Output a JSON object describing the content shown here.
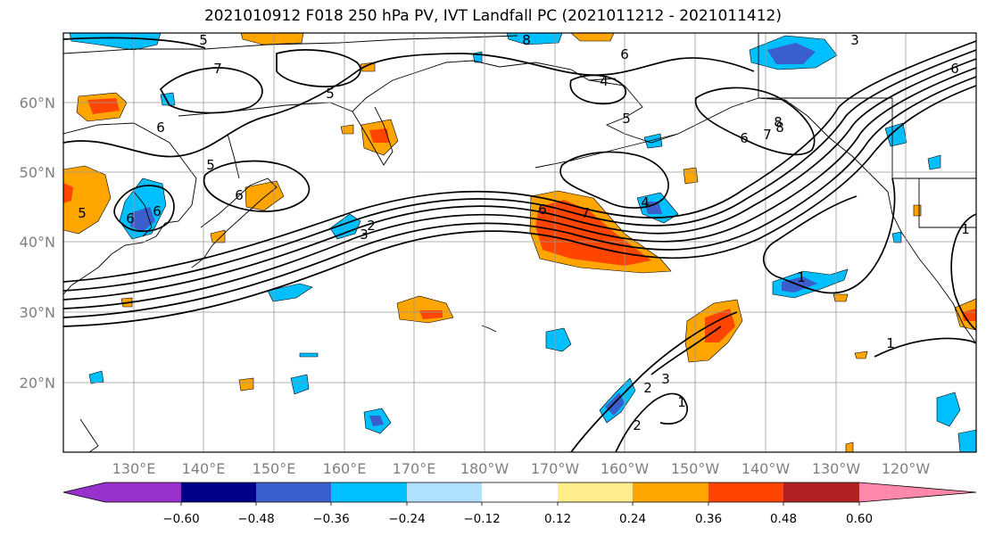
{
  "title": "2021010912 F018 250 hPa PV, IVT Landfall PC (2021011212 - 2021011412)",
  "lat_labels": [
    "60°N",
    "50°N",
    "40°N",
    "30°N",
    "20°N"
  ],
  "lon_labels": [
    "130°E",
    "140°E",
    "150°E",
    "160°E",
    "170°E",
    "180°W",
    "170°W",
    "160°W",
    "150°W",
    "140°W",
    "130°W",
    "120°W"
  ],
  "colorbar": {
    "colors": [
      "#9932cc",
      "#00008b",
      "#3a5fcd",
      "#00bfff",
      "#b0e2ff",
      "#ffffff",
      "#ffec8b",
      "#ffa500",
      "#ff4500",
      "#b22222",
      "#ff88aa"
    ],
    "labels": [
      "−0.60",
      "−0.48",
      "−0.36",
      "−0.24",
      "−0.12",
      "0.12",
      "0.24",
      "0.36",
      "0.48",
      "0.60"
    ]
  },
  "contour_labels": [
    "5",
    "7",
    "5",
    "6",
    "5",
    "6",
    "8",
    "6",
    "4",
    "5",
    "6",
    "7",
    "6",
    "8",
    "3",
    "6",
    "5",
    "6",
    "6",
    "7",
    "8",
    "4",
    "3",
    "2",
    "1",
    "1",
    "1",
    "2",
    "3",
    "2",
    "1"
  ],
  "colors": {
    "warm_strong": "#ff4500",
    "warm": "#ffa500",
    "warm_light": "#ffec8b",
    "cool": "#00bfff",
    "cool_deep": "#3a5fcd"
  }
}
